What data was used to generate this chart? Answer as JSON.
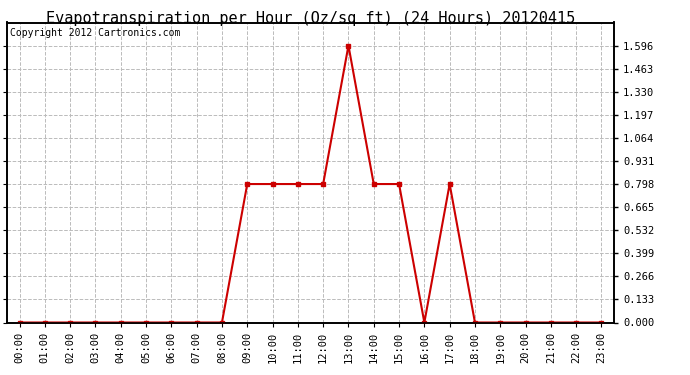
{
  "title": "Evapotranspiration per Hour (Oz/sq ft) (24 Hours) 20120415",
  "copyright": "Copyright 2012 Cartronics.com",
  "x_labels": [
    "00:00",
    "01:00",
    "02:00",
    "03:00",
    "04:00",
    "05:00",
    "06:00",
    "07:00",
    "08:00",
    "09:00",
    "10:00",
    "11:00",
    "12:00",
    "13:00",
    "14:00",
    "15:00",
    "16:00",
    "17:00",
    "18:00",
    "19:00",
    "20:00",
    "21:00",
    "22:00",
    "23:00"
  ],
  "y_values": [
    0.0,
    0.0,
    0.0,
    0.0,
    0.0,
    0.0,
    0.0,
    0.0,
    0.0,
    0.798,
    0.798,
    0.798,
    0.798,
    1.596,
    0.798,
    0.798,
    0.0,
    0.798,
    0.0,
    0.0,
    0.0,
    0.0,
    0.0,
    0.0
  ],
  "line_color": "#cc0000",
  "marker": "s",
  "marker_size": 3,
  "bg_color": "#ffffff",
  "plot_bg_color": "#ffffff",
  "grid_color": "#bbbbbb",
  "title_fontsize": 11,
  "copyright_fontsize": 7,
  "tick_fontsize": 7.5,
  "ylim": [
    0.0,
    1.729
  ],
  "yticks": [
    0.0,
    0.133,
    0.266,
    0.399,
    0.532,
    0.665,
    0.798,
    0.931,
    1.064,
    1.197,
    1.33,
    1.463,
    1.596
  ],
  "border_color": "#000000"
}
